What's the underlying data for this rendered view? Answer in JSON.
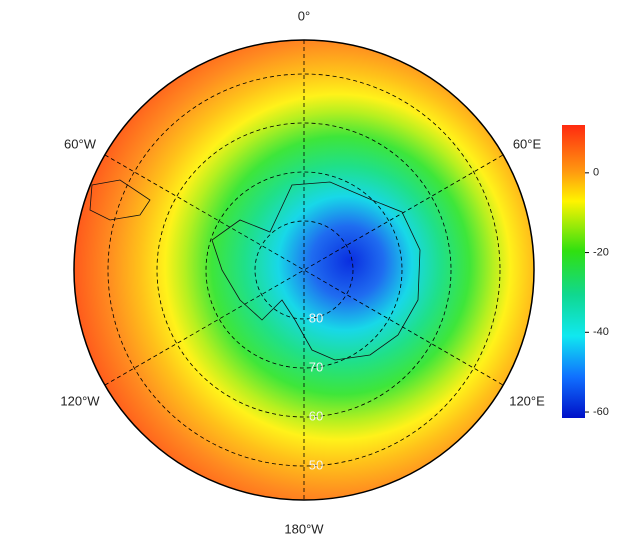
{
  "map": {
    "meridian_labels": {
      "top": "0°",
      "upper_right": "60°E",
      "lower_right": "120°E",
      "bottom": "180°W",
      "lower_left": "120°W",
      "upper_left": "60°W"
    },
    "latitude_labels": [
      80,
      70,
      60,
      50
    ]
  },
  "colorbar": {
    "lim": [
      -61.5,
      12
    ],
    "ticks": [
      0,
      -20,
      -40,
      -60
    ]
  }
}
